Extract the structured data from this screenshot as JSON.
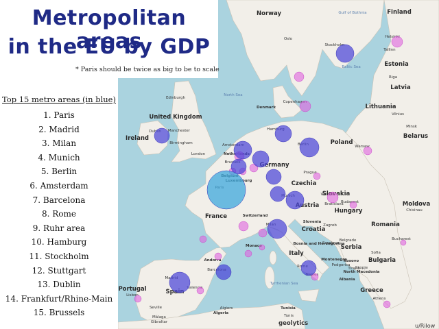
{
  "title": {
    "line1": "Metropolitan areas",
    "line2": "in the EU by GDP"
  },
  "subtitle": "* Paris should be twice as big to be to scale",
  "list": {
    "heading": "Top 15 metro areas (in blue)",
    "items": [
      "1. Paris",
      "2. Madrid",
      "3. Milan",
      "4. Munich",
      "5. Berlin",
      "6. Amsterdam",
      "7. Barcelona",
      "8. Rome",
      "9. Ruhr area",
      "10. Hamburg",
      "11. Stockholm",
      "12. Stuttgart",
      "13. Dublin",
      "14. Frankfurt/Rhine-Main",
      "15. Brussels"
    ]
  },
  "colors": {
    "sea": "#aad3df",
    "land": "#f2efe9",
    "nonEU": "#e9e6df",
    "top15": "#4b45d8",
    "other": "#e062e0",
    "paris": "#3da8dc",
    "title": "#1f2a86"
  },
  "map": {
    "country_labels": [
      {
        "name": "Norway"
      },
      {
        "name": "Finland"
      },
      {
        "name": "Estonia"
      },
      {
        "name": "Latvia"
      },
      {
        "name": "Lithuania"
      },
      {
        "name": "Poland"
      },
      {
        "name": "Germany"
      },
      {
        "name": "France"
      },
      {
        "name": "Spain"
      },
      {
        "name": "Portugal"
      },
      {
        "name": "Italy"
      },
      {
        "name": "Romania"
      },
      {
        "name": "Bulgaria"
      },
      {
        "name": "Greece"
      },
      {
        "name": "Czechia"
      },
      {
        "name": "Austria"
      },
      {
        "name": "Hungary"
      },
      {
        "name": "Ireland"
      },
      {
        "name": "United Kingdom"
      },
      {
        "name": "Denmark"
      },
      {
        "name": "Belarus"
      },
      {
        "name": "Serbia"
      },
      {
        "name": "Croatia"
      },
      {
        "name": "Slovakia"
      },
      {
        "name": "Belgium"
      },
      {
        "name": "Netherlands"
      },
      {
        "name": "Switzerland"
      },
      {
        "name": "Luxembourg"
      },
      {
        "name": "Moldova"
      },
      {
        "name": "Slovenia"
      },
      {
        "name": "Bosnia and Herzegovina"
      },
      {
        "name": "Montenegro"
      },
      {
        "name": "Kosovo"
      },
      {
        "name": "North Macedonia"
      },
      {
        "name": "Albania"
      },
      {
        "name": "Andorra"
      },
      {
        "name": "Monaco"
      },
      {
        "name": "Tunisia"
      },
      {
        "name": "Algeria"
      }
    ],
    "city_labels": [
      {
        "name": "Oslo"
      },
      {
        "name": "Stockholm"
      },
      {
        "name": "Helsinki"
      },
      {
        "name": "Tallinn"
      },
      {
        "name": "Riga"
      },
      {
        "name": "Vilnius"
      },
      {
        "name": "Minsk"
      },
      {
        "name": "Copenhagen"
      },
      {
        "name": "Hamburg"
      },
      {
        "name": "Berlin"
      },
      {
        "name": "Amsterdam"
      },
      {
        "name": "Brussels"
      },
      {
        "name": "London"
      },
      {
        "name": "Dublin"
      },
      {
        "name": "Edinburgh"
      },
      {
        "name": "Manchester"
      },
      {
        "name": "Birmingham"
      },
      {
        "name": "Paris"
      },
      {
        "name": "Munich"
      },
      {
        "name": "Prague"
      },
      {
        "name": "Vienna"
      },
      {
        "name": "Budapest"
      },
      {
        "name": "Bratislava"
      },
      {
        "name": "Milan"
      },
      {
        "name": "Rome"
      },
      {
        "name": "Madrid"
      },
      {
        "name": "Barcelona"
      },
      {
        "name": "Valencia"
      },
      {
        "name": "Lisbon"
      },
      {
        "name": "Seville"
      },
      {
        "name": "Málaga"
      },
      {
        "name": "Gibraltar"
      },
      {
        "name": "Zagreb"
      },
      {
        "name": "Belgrade"
      },
      {
        "name": "Sofia"
      },
      {
        "name": "Bucharest"
      },
      {
        "name": "Athens"
      },
      {
        "name": "Warsaw"
      },
      {
        "name": "Chisinau"
      },
      {
        "name": "Tirana"
      },
      {
        "name": "Skopje"
      },
      {
        "name": "Sarajevo"
      },
      {
        "name": "Podgorica"
      },
      {
        "name": "Tunis"
      },
      {
        "name": "Algiers"
      },
      {
        "name": "Naples"
      }
    ],
    "sea_labels": [
      {
        "name": "North Sea"
      },
      {
        "name": "Baltic Sea"
      },
      {
        "name": "Tyrrhenian Sea"
      },
      {
        "name": "Gulf of Bothnia"
      }
    ],
    "circles": [
      {
        "name": "Paris",
        "group": "top15",
        "rank": 1
      },
      {
        "name": "Madrid",
        "group": "top15",
        "rank": 2
      },
      {
        "name": "Milan",
        "group": "top15",
        "rank": 3
      },
      {
        "name": "Munich",
        "group": "top15",
        "rank": 4
      },
      {
        "name": "Berlin",
        "group": "top15",
        "rank": 5
      },
      {
        "name": "Amsterdam",
        "group": "top15",
        "rank": 6
      },
      {
        "name": "Barcelona",
        "group": "top15",
        "rank": 7
      },
      {
        "name": "Rome",
        "group": "top15",
        "rank": 8
      },
      {
        "name": "Ruhr area",
        "group": "top15",
        "rank": 9
      },
      {
        "name": "Hamburg",
        "group": "top15",
        "rank": 10
      },
      {
        "name": "Stockholm",
        "group": "top15",
        "rank": 11
      },
      {
        "name": "Stuttgart",
        "group": "top15",
        "rank": 12
      },
      {
        "name": "Dublin",
        "group": "top15",
        "rank": 13
      },
      {
        "name": "Frankfurt/Rhine-Main",
        "group": "top15",
        "rank": 14
      },
      {
        "name": "Brussels",
        "group": "top15",
        "rank": 15
      },
      {
        "name": "Copenhagen",
        "group": "other"
      },
      {
        "name": "Helsinki",
        "group": "other"
      },
      {
        "name": "Vienna",
        "group": "other"
      },
      {
        "name": "Prague",
        "group": "other"
      },
      {
        "name": "Warsaw",
        "group": "other"
      },
      {
        "name": "Lisbon",
        "group": "other"
      },
      {
        "name": "Athens",
        "group": "other"
      },
      {
        "name": "Budapest",
        "group": "other"
      },
      {
        "name": "Bucharest",
        "group": "other"
      },
      {
        "name": "Lyon",
        "group": "other"
      },
      {
        "name": "Valencia",
        "group": "other"
      },
      {
        "name": "Naples",
        "group": "other"
      },
      {
        "name": "Gothenburg",
        "group": "other"
      },
      {
        "name": "Rotterdam/The Hague",
        "group": "other"
      },
      {
        "name": "Antwerp",
        "group": "other"
      },
      {
        "name": "Cologne",
        "group": "other"
      },
      {
        "name": "Turin",
        "group": "other"
      },
      {
        "name": "Lille",
        "group": "other"
      },
      {
        "name": "Toulouse",
        "group": "other"
      },
      {
        "name": "Marseille",
        "group": "other"
      },
      {
        "name": "Bordeaux",
        "group": "other"
      },
      {
        "name": "Nice",
        "group": "other"
      }
    ]
  },
  "credit": {
    "left": "geolytics",
    "right": "u/Rilow"
  }
}
